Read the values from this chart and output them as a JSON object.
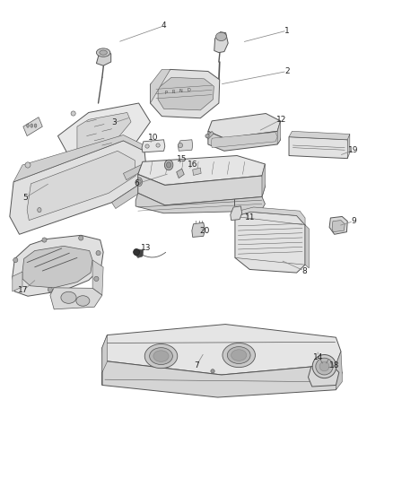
{
  "bg": "#ffffff",
  "lc": "#555555",
  "parts_color": "#e8e8e8",
  "parts_color2": "#d8d8d8",
  "leader_color": "#888888",
  "label_color": "#222222",
  "label_fs": 6.5,
  "leaders": [
    [
      1,
      0.735,
      0.945,
      0.618,
      0.92
    ],
    [
      2,
      0.735,
      0.858,
      0.56,
      0.83
    ],
    [
      3,
      0.285,
      0.748,
      0.33,
      0.76
    ],
    [
      4,
      0.415,
      0.955,
      0.295,
      0.92
    ],
    [
      5,
      0.055,
      0.588,
      0.12,
      0.62
    ],
    [
      6,
      0.345,
      0.618,
      0.43,
      0.64
    ],
    [
      7,
      0.5,
      0.23,
      0.52,
      0.258
    ],
    [
      8,
      0.78,
      0.432,
      0.718,
      0.455
    ],
    [
      9,
      0.908,
      0.538,
      0.868,
      0.528
    ],
    [
      10,
      0.388,
      0.716,
      0.378,
      0.702
    ],
    [
      11,
      0.64,
      0.545,
      0.622,
      0.558
    ],
    [
      12,
      0.72,
      0.755,
      0.66,
      0.73
    ],
    [
      13,
      0.368,
      0.48,
      0.35,
      0.476
    ],
    [
      14,
      0.815,
      0.248,
      0.815,
      0.258
    ],
    [
      15,
      0.462,
      0.67,
      0.454,
      0.658
    ],
    [
      16,
      0.49,
      0.658,
      0.478,
      0.648
    ],
    [
      17,
      0.05,
      0.39,
      0.085,
      0.415
    ],
    [
      18,
      0.858,
      0.23,
      0.842,
      0.238
    ],
    [
      19,
      0.908,
      0.69,
      0.87,
      0.678
    ],
    [
      20,
      0.522,
      0.518,
      0.508,
      0.524
    ]
  ]
}
